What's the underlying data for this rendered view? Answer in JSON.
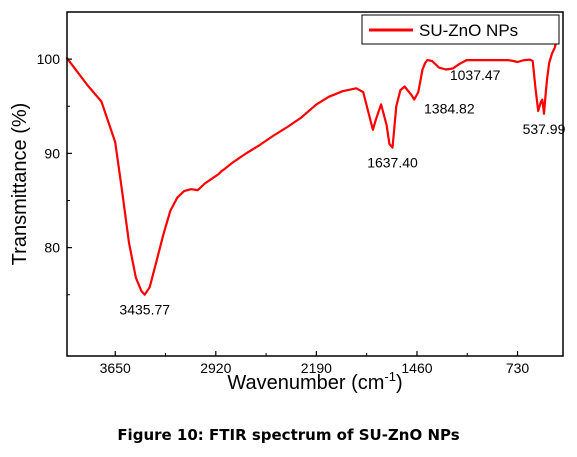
{
  "figure_caption": "Figure 10: FTIR spectrum of SU-ZnO NPs",
  "chart_data": {
    "type": "line",
    "title": "",
    "xlabel": "Wavenumber (cm",
    "xlabel_sup": "-1",
    "xlabel_close": ")",
    "ylabel": "Transmittance (%)",
    "xlim": [
      4000,
      400
    ],
    "ylim": [
      68.5,
      105
    ],
    "x_reversed": true,
    "x_ticks": [
      3650,
      2920,
      2190,
      1460,
      730
    ],
    "x_tick_labels": [
      "3650",
      "2920",
      "2190",
      "1460",
      "730"
    ],
    "y_ticks": [
      80,
      90,
      100
    ],
    "y_tick_labels": [
      "80",
      "90",
      "100"
    ],
    "grid": false,
    "legend": {
      "position": "top-right",
      "entries": [
        "SU-ZnO NPs"
      ]
    },
    "colors": {
      "series": "#ff0000",
      "axis": "#000000"
    },
    "series": [
      {
        "name": "SU-ZnO NPs",
        "x": [
          4000,
          3850,
          3750,
          3650,
          3600,
          3550,
          3500,
          3460,
          3435.77,
          3400,
          3350,
          3300,
          3250,
          3200,
          3150,
          3100,
          3050,
          3000,
          2950,
          2920,
          2900,
          2880,
          2860,
          2800,
          2700,
          2600,
          2500,
          2400,
          2300,
          2190,
          2100,
          2000,
          1900,
          1850,
          1780,
          1760,
          1720,
          1680,
          1660,
          1637.4,
          1610,
          1580,
          1550,
          1500,
          1480,
          1450,
          1420,
          1400,
          1384.82,
          1350,
          1300,
          1250,
          1200,
          1150,
          1100,
          1060,
          1037.47,
          1000,
          950,
          900,
          850,
          800,
          760,
          730,
          680,
          640,
          620,
          600,
          580,
          560,
          550,
          537.99,
          525,
          515,
          500,
          480,
          460,
          450,
          440
        ],
        "y": [
          100.1,
          97.2,
          95.5,
          91.2,
          86.0,
          80.5,
          76.8,
          75.4,
          75.0,
          75.8,
          78.6,
          81.4,
          83.9,
          85.3,
          86.0,
          86.2,
          86.1,
          86.8,
          87.3,
          87.6,
          87.8,
          88.1,
          88.3,
          89.0,
          90.0,
          90.9,
          91.9,
          92.8,
          93.8,
          95.2,
          96.0,
          96.6,
          96.9,
          96.5,
          92.5,
          93.5,
          95.2,
          93.0,
          91.0,
          90.6,
          95.0,
          96.7,
          97.1,
          96.2,
          95.7,
          96.5,
          98.9,
          99.6,
          99.9,
          99.8,
          99.1,
          98.9,
          99.0,
          99.5,
          99.9,
          99.9,
          99.9,
          99.9,
          99.9,
          99.9,
          99.9,
          99.9,
          99.8,
          99.7,
          99.9,
          99.95,
          99.8,
          97.0,
          94.5,
          95.5,
          95.7,
          94.2,
          96.5,
          98.0,
          99.6,
          100.6,
          101.2,
          101.8,
          102.7
        ]
      }
    ],
    "annotations": [
      {
        "text": "3435.77",
        "x": 3435.77,
        "y": 75.0,
        "anchor": "below"
      },
      {
        "text": "1637.40",
        "x": 1637.4,
        "y": 90.6,
        "anchor": "below"
      },
      {
        "text": "1384.82",
        "x": 1384.82,
        "y": 95.7,
        "anchor": "right-below"
      },
      {
        "text": "1037.47",
        "x": 1037.47,
        "y": 99.9,
        "anchor": "below"
      },
      {
        "text": "537.99",
        "x": 537.99,
        "y": 94.2,
        "anchor": "below"
      }
    ]
  }
}
